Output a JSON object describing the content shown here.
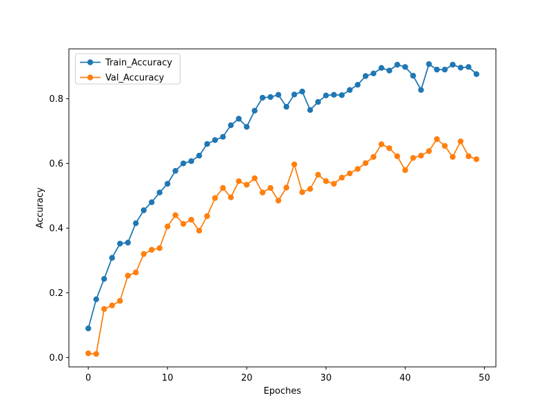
{
  "figure": {
    "background": "#ffffff"
  },
  "chart_data": {
    "type": "line",
    "title": "",
    "xlabel": "Epoches",
    "ylabel": "Accuracy",
    "x": [
      0,
      1,
      2,
      3,
      4,
      5,
      6,
      7,
      8,
      9,
      10,
      11,
      12,
      13,
      14,
      15,
      16,
      17,
      18,
      19,
      20,
      21,
      22,
      23,
      24,
      25,
      26,
      27,
      28,
      29,
      30,
      31,
      32,
      33,
      34,
      35,
      36,
      37,
      38,
      39,
      40,
      41,
      42,
      43,
      44,
      45,
      46,
      47,
      48,
      49
    ],
    "series": [
      {
        "name": "Train_Accuracy",
        "color": "#1f77b4",
        "marker": "o",
        "values": [
          0.09,
          0.18,
          0.243,
          0.308,
          0.352,
          0.355,
          0.415,
          0.455,
          0.48,
          0.51,
          0.537,
          0.577,
          0.6,
          0.607,
          0.624,
          0.66,
          0.672,
          0.682,
          0.718,
          0.738,
          0.713,
          0.763,
          0.803,
          0.805,
          0.812,
          0.775,
          0.813,
          0.822,
          0.765,
          0.79,
          0.81,
          0.812,
          0.811,
          0.827,
          0.843,
          0.87,
          0.878,
          0.895,
          0.887,
          0.905,
          0.898,
          0.871,
          0.827,
          0.907,
          0.89,
          0.89,
          0.905,
          0.896,
          0.898,
          0.876
        ]
      },
      {
        "name": "Val_Accuracy",
        "color": "#ff7f0e",
        "marker": "o",
        "values": [
          0.013,
          0.011,
          0.15,
          0.161,
          0.175,
          0.253,
          0.263,
          0.32,
          0.333,
          0.338,
          0.405,
          0.44,
          0.413,
          0.426,
          0.392,
          0.437,
          0.493,
          0.524,
          0.495,
          0.545,
          0.534,
          0.554,
          0.51,
          0.524,
          0.485,
          0.525,
          0.597,
          0.511,
          0.521,
          0.565,
          0.545,
          0.537,
          0.556,
          0.569,
          0.583,
          0.601,
          0.62,
          0.659,
          0.647,
          0.622,
          0.579,
          0.617,
          0.624,
          0.638,
          0.675,
          0.654,
          0.62,
          0.668,
          0.622,
          0.613
        ]
      }
    ],
    "xticks": [
      0,
      10,
      20,
      30,
      40,
      50
    ],
    "yticks": [
      0.0,
      0.2,
      0.4,
      0.6,
      0.8
    ],
    "xtick_labels": [
      "0",
      "10",
      "20",
      "30",
      "40",
      "50"
    ],
    "ytick_labels": [
      "0.0",
      "0.2",
      "0.4",
      "0.6",
      "0.8"
    ],
    "xlim": [
      -2.45,
      51.45
    ],
    "ylim": [
      -0.029,
      0.954
    ],
    "grid": false,
    "legend_position": "upper left"
  }
}
